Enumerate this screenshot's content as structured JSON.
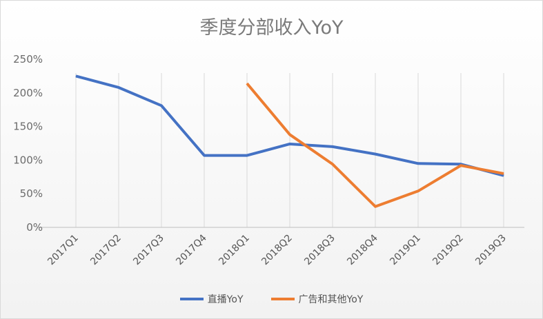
{
  "chart_data": {
    "type": "line",
    "title": "季度分部收入YoY",
    "categories": [
      "2017Q1",
      "2017Q2",
      "2017Q3",
      "2017Q4",
      "2018Q1",
      "2018Q2",
      "2018Q3",
      "2018Q4",
      "2019Q1",
      "2019Q2",
      "2019Q3"
    ],
    "series": [
      {
        "name": "直播YoY",
        "color": "#4472c4",
        "values": [
          225,
          208,
          181,
          107,
          107,
          124,
          120,
          109,
          95,
          94,
          77
        ]
      },
      {
        "name": "广告和其他YoY",
        "color": "#ed7d31",
        "values": [
          null,
          null,
          null,
          null,
          214,
          138,
          94,
          31,
          54,
          92,
          80
        ]
      }
    ],
    "ylim": [
      0,
      250
    ],
    "yticks": [
      0,
      50,
      100,
      150,
      200,
      250
    ],
    "ytick_labels": [
      "0%",
      "50%",
      "100%",
      "150%",
      "200%",
      "250%"
    ],
    "grid": "vertical lines at categories",
    "legend": "bottom"
  }
}
